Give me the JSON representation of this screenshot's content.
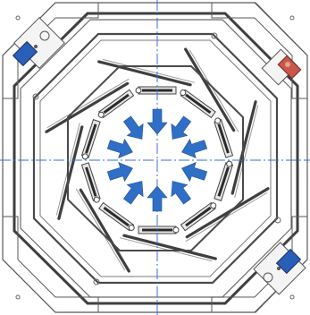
{
  "figure": {
    "arrow_count": 10,
    "arrow_direction": "inward",
    "arrow_color": "#2f6fc6",
    "frame_color": "#4a4a4a",
    "centerline_color": "#3a6fd8",
    "actuator_left_color": "#2a5fb8",
    "actuator_right_color": "#c9574a",
    "shape": "octagon"
  }
}
